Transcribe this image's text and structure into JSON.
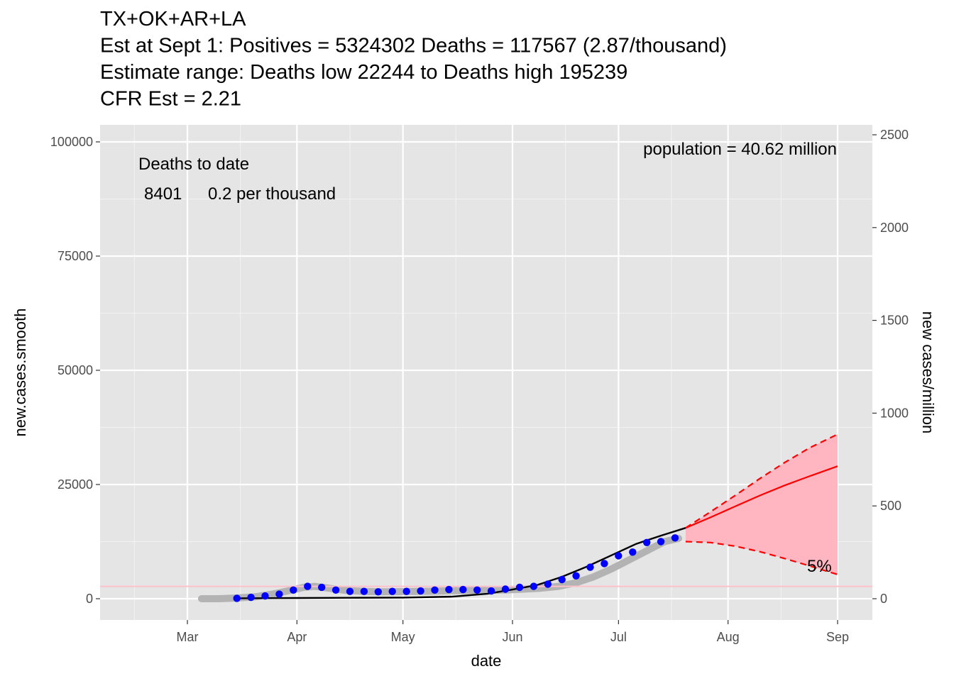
{
  "chart_data": {
    "type": "line",
    "title_lines": [
      "TX+OK+AR+LA",
      "Est at Sept 1: Positives = 5324302 Deaths = 117567 (2.87/thousand)",
      "Estimate range: Deaths low 22244 to Deaths high 195239",
      "CFR Est = 2.21"
    ],
    "xlabel": "date",
    "ylabel": "new.cases.smooth",
    "y2label": "new cases/million",
    "x_ticks": [
      "Mar",
      "Apr",
      "May",
      "Jun",
      "Jul",
      "Aug",
      "Sep"
    ],
    "y_ticks": [
      "0",
      "25000",
      "50000",
      "75000",
      "100000"
    ],
    "y2_ticks": [
      "0",
      "500",
      "1000",
      "1500",
      "2000",
      "2500"
    ],
    "ylim": [
      -5000,
      103000
    ],
    "grid": true,
    "legend": "none",
    "annotations": {
      "deaths_to_date_label": "Deaths to date",
      "deaths_count": "8401",
      "deaths_per_thousand": "0.2 per thousand",
      "population": "population = 40.62 million",
      "band_label": "5%"
    },
    "reference_line": {
      "y": 2700,
      "color": "#ffc0cb"
    },
    "series": [
      {
        "kind": "reported-smooth-band",
        "color": "#b3b3b3",
        "x": [
          "2020-03-05",
          "2020-03-10",
          "2020-03-15",
          "2020-03-20",
          "2020-03-25",
          "2020-03-30",
          "2020-04-03",
          "2020-04-06",
          "2020-04-10",
          "2020-04-15",
          "2020-04-20",
          "2020-04-25",
          "2020-04-30",
          "2020-05-05",
          "2020-05-10",
          "2020-05-15",
          "2020-05-20",
          "2020-05-25",
          "2020-05-30",
          "2020-06-04",
          "2020-06-09",
          "2020-06-14",
          "2020-06-19",
          "2020-06-24",
          "2020-06-29",
          "2020-07-04",
          "2020-07-09",
          "2020-07-14",
          "2020-07-18"
        ],
        "y": [
          0,
          0,
          150,
          400,
          1000,
          1800,
          2500,
          2700,
          2300,
          1800,
          1600,
          1500,
          1550,
          1600,
          1650,
          1750,
          1800,
          1850,
          1900,
          2100,
          2300,
          2700,
          3500,
          4800,
          6500,
          8500,
          10500,
          12500,
          13200
        ]
      },
      {
        "kind": "observed-points",
        "color": "#0000ff",
        "x": [
          "2020-03-15",
          "2020-03-19",
          "2020-03-23",
          "2020-03-27",
          "2020-03-31",
          "2020-04-04",
          "2020-04-08",
          "2020-04-12",
          "2020-04-16",
          "2020-04-20",
          "2020-04-24",
          "2020-04-28",
          "2020-05-02",
          "2020-05-06",
          "2020-05-10",
          "2020-05-14",
          "2020-05-18",
          "2020-05-22",
          "2020-05-26",
          "2020-05-30",
          "2020-06-03",
          "2020-06-07",
          "2020-06-11",
          "2020-06-15",
          "2020-06-19",
          "2020-06-23",
          "2020-06-27",
          "2020-07-01",
          "2020-07-05",
          "2020-07-09",
          "2020-07-13",
          "2020-07-17"
        ],
        "y": [
          100,
          300,
          600,
          1000,
          1900,
          2700,
          2500,
          1900,
          1600,
          1600,
          1500,
          1600,
          1600,
          1700,
          1900,
          2000,
          2000,
          1900,
          1700,
          2100,
          2500,
          2700,
          3200,
          4200,
          5000,
          6900,
          7700,
          9400,
          10200,
          12300,
          12500,
          13300
        ]
      },
      {
        "kind": "model-fit",
        "color": "#000000",
        "x": [
          "2020-03-15",
          "2020-04-01",
          "2020-04-15",
          "2020-05-01",
          "2020-05-15",
          "2020-05-25",
          "2020-06-01",
          "2020-06-08",
          "2020-06-15",
          "2020-06-22",
          "2020-06-29",
          "2020-07-06",
          "2020-07-13",
          "2020-07-20"
        ],
        "y": [
          100,
          150,
          200,
          250,
          450,
          1100,
          2000,
          3000,
          4800,
          7000,
          9500,
          12000,
          13800,
          15500
        ]
      },
      {
        "kind": "projection",
        "color": "#ff0000",
        "x": [
          "2020-07-20",
          "2020-07-27",
          "2020-08-03",
          "2020-08-10",
          "2020-08-17",
          "2020-08-24",
          "2020-09-01"
        ],
        "y": [
          15500,
          17800,
          20200,
          22600,
          24800,
          26800,
          29000
        ],
        "upper": [
          15500,
          19000,
          22600,
          26300,
          29800,
          33000,
          36000
        ],
        "lower": [
          12500,
          12300,
          11500,
          10300,
          8800,
          7200,
          5300
        ]
      }
    ]
  }
}
